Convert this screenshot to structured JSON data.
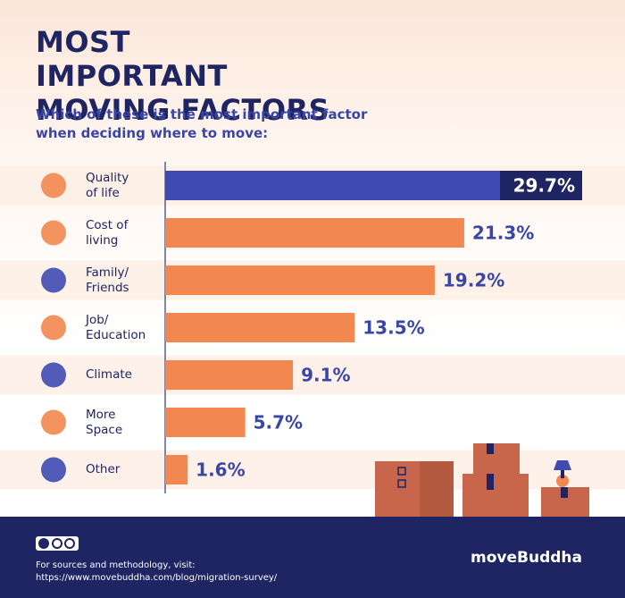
{
  "chart_data": {
    "type": "bar",
    "orientation": "horizontal",
    "title": "MOST IMPORTANT MOVING FACTORS",
    "subtitle": "Which of these is the most important factor when deciding where to move:",
    "categories": [
      "Quality of life",
      "Cost of living",
      "Family/ Friends",
      "Job/ Education",
      "Climate",
      "More Space",
      "Other"
    ],
    "values": [
      29.7,
      21.3,
      19.2,
      13.5,
      9.1,
      5.7,
      1.6
    ],
    "value_labels": [
      "29.7%",
      "21.3%",
      "19.2%",
      "13.5%",
      "9.1%",
      "5.7%",
      "1.6%"
    ],
    "colors": [
      "#3f4bb3",
      "#f2874f",
      "#f2874f",
      "#f2874f",
      "#f2874f",
      "#f2874f",
      "#f2874f"
    ]
  },
  "footer": {
    "source_text": "For sources and methodology, visit:",
    "source_url": "https://www.movebuddha.com/blog/migration-survey/",
    "brand": "moveBuddha"
  }
}
